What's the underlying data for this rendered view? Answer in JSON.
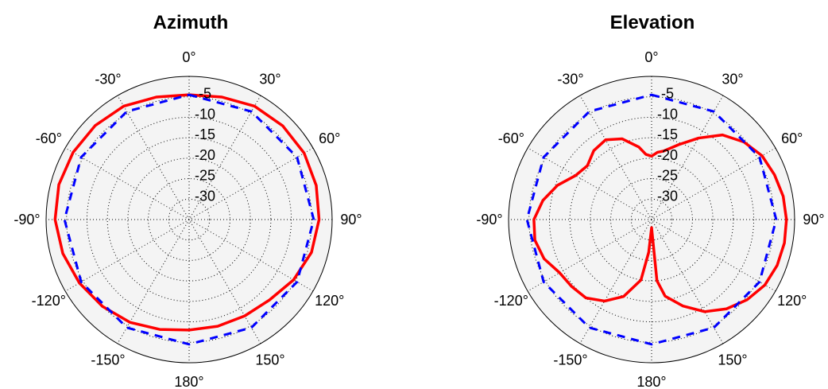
{
  "chart_data": [
    {
      "type": "line",
      "polar": true,
      "title": "Azimuth",
      "theta_unit": "degrees",
      "theta_labels": [
        "0°",
        "30°",
        "60°",
        "90°",
        "120°",
        "150°",
        "180°",
        "-150°",
        "-120°",
        "-90°",
        "-60°",
        "-30°"
      ],
      "r_ticks": [
        "-5",
        "-10",
        "-15",
        "-20",
        "-25",
        "-30"
      ],
      "rlim": [
        -35,
        0
      ],
      "grid": true,
      "series": [
        {
          "line_color": "#ff0000",
          "line_style": "solid",
          "theta": [
            0,
            15,
            30,
            45,
            60,
            75,
            90,
            105,
            120,
            135,
            150,
            165,
            180,
            -165,
            -150,
            -135,
            -120,
            -105,
            -90,
            -75,
            -60,
            -45,
            -30,
            -15
          ],
          "r": [
            -4.5,
            -4.0,
            -3.0,
            -2.6,
            -2.5,
            -2.8,
            -3.2,
            -4.0,
            -5.5,
            -7.2,
            -7.8,
            -8.0,
            -8.0,
            -7.2,
            -6.0,
            -5.0,
            -4.0,
            -3.0,
            -2.2,
            -2.0,
            -2.2,
            -2.5,
            -3.0,
            -4.0
          ]
        },
        {
          "line_color": "#0000ff",
          "line_style": "dashed",
          "theta": [
            0,
            30,
            60,
            90,
            120,
            150,
            180,
            -150,
            -120,
            -90,
            -60,
            -30
          ],
          "r": [
            -4.5,
            -4.5,
            -4.5,
            -4.5,
            -4.5,
            -4.5,
            -4.5,
            -4.5,
            -4.5,
            -4.5,
            -4.5,
            -4.5
          ]
        }
      ]
    },
    {
      "type": "line",
      "polar": true,
      "title": "Elevation",
      "theta_unit": "degrees",
      "theta_labels": [
        "0°",
        "30°",
        "60°",
        "90°",
        "120°",
        "150°",
        "180°",
        "-150°",
        "-120°",
        "-90°",
        "-60°",
        "-30°"
      ],
      "r_ticks": [
        "-5",
        "-10",
        "-15",
        "-20",
        "-25",
        "-30"
      ],
      "rlim": [
        -35,
        0
      ],
      "grid": true,
      "series": [
        {
          "line_color": "#ff0000",
          "line_style": "solid",
          "theta": [
            0,
            5,
            10,
            20,
            30,
            40,
            50,
            60,
            70,
            80,
            90,
            100,
            110,
            120,
            130,
            140,
            150,
            160,
            170,
            175,
            180,
            -175,
            -170,
            -160,
            -150,
            -140,
            -130,
            -120,
            -110,
            -100,
            -90,
            -80,
            -70,
            -60,
            -50,
            -40,
            -30,
            -20,
            -10,
            -5
          ],
          "r": [
            -19.5,
            -18.5,
            -18.0,
            -15.5,
            -12.0,
            -8.0,
            -5.5,
            -3.8,
            -3.0,
            -2.3,
            -2.0,
            -2.0,
            -2.3,
            -3.0,
            -4.5,
            -6.5,
            -9.0,
            -12.5,
            -16.0,
            -20.0,
            -33.0,
            -27.0,
            -20.0,
            -15.0,
            -12.0,
            -10.0,
            -9.5,
            -9.0,
            -7.0,
            -6.0,
            -6.2,
            -8.0,
            -10.5,
            -13.5,
            -14.5,
            -13.0,
            -12.5,
            -14.0,
            -17.0,
            -19.0
          ]
        },
        {
          "line_color": "#0000ff",
          "line_style": "dashed",
          "theta": [
            0,
            30,
            60,
            90,
            120,
            150,
            180,
            -150,
            -120,
            -90,
            -60,
            -30
          ],
          "r": [
            -4.5,
            -4.5,
            -4.5,
            -4.5,
            -4.5,
            -4.5,
            -4.5,
            -4.5,
            -4.5,
            -4.5,
            -4.5,
            -4.5
          ]
        }
      ]
    }
  ]
}
